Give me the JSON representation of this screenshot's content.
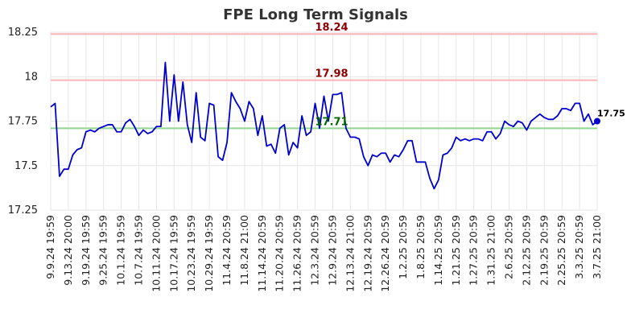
{
  "chart_data": {
    "type": "line",
    "title": "FPE Long Term Signals",
    "xlabel": "",
    "ylabel": "",
    "ylim": [
      17.25,
      18.25
    ],
    "yticks": [
      "17.25",
      "17.5",
      "17.75",
      "18",
      "18.25"
    ],
    "xtick_labels": [
      "9.9.24 19:59",
      "9.13.24 20:00",
      "9.19.24 19:59",
      "9.25.24 19:59",
      "10.1.24 19:59",
      "10.7.24 19:59",
      "10.11.24 20:00",
      "10.17.24 19:59",
      "10.23.24 19:59",
      "10.29.24 19:59",
      "11.4.24 20:59",
      "11.8.24 21:00",
      "11.14.24 20:59",
      "11.20.24 20:59",
      "11.26.24 20:59",
      "12.3.24 20:59",
      "12.9.24 20:59",
      "12.13.24 21:00",
      "12.19.24 20:59",
      "12.26.24 20:59",
      "1.2.25 20:59",
      "1.8.25 20:59",
      "1.14.25 20:59",
      "1.21.25 20:59",
      "1.27.25 20:59",
      "1.31.25 21:00",
      "2.6.25 20:59",
      "2.12.25 20:59",
      "2.19.25 20:59",
      "2.25.25 20:59",
      "3.3.25 20:59",
      "3.7.25 21:00"
    ],
    "grid": true,
    "line_color": "#0000cc",
    "series": [
      {
        "values": [
          17.83,
          17.85,
          17.44,
          17.48,
          17.48,
          17.56,
          17.59,
          17.6,
          17.69,
          17.7,
          17.69,
          17.71,
          17.72,
          17.73,
          17.73,
          17.69,
          17.69,
          17.74,
          17.76,
          17.72,
          17.67,
          17.7,
          17.68,
          17.69,
          17.72,
          17.72,
          18.08,
          17.75,
          18.01,
          17.75,
          17.97,
          17.73,
          17.63,
          17.91,
          17.66,
          17.64,
          17.85,
          17.84,
          17.55,
          17.53,
          17.63,
          17.91,
          17.86,
          17.82,
          17.75,
          17.86,
          17.82,
          17.67,
          17.78,
          17.61,
          17.62,
          17.57,
          17.71,
          17.73,
          17.56,
          17.63,
          17.6,
          17.78,
          17.67,
          17.69,
          17.85,
          17.71,
          17.89,
          17.75,
          17.9,
          17.9,
          17.91,
          17.71,
          17.66,
          17.66,
          17.65,
          17.55,
          17.5,
          17.56,
          17.55,
          17.57,
          17.57,
          17.52,
          17.56,
          17.55,
          17.59,
          17.64,
          17.64,
          17.52,
          17.52,
          17.52,
          17.43,
          17.37,
          17.42,
          17.56,
          17.57,
          17.6,
          17.66,
          17.64,
          17.65,
          17.64,
          17.65,
          17.65,
          17.64,
          17.69,
          17.69,
          17.65,
          17.68,
          17.75,
          17.73,
          17.72,
          17.75,
          17.74,
          17.7,
          17.75,
          17.77,
          17.79,
          17.77,
          17.76,
          17.76,
          17.78,
          17.82,
          17.82,
          17.81,
          17.85,
          17.85,
          17.75,
          17.79,
          17.73,
          17.75
        ]
      }
    ],
    "reference_lines": [
      {
        "value": 18.24,
        "label": "18.24",
        "color": "#ffb3b3"
      },
      {
        "value": 17.98,
        "label": "17.98",
        "color": "#ffb3b3"
      },
      {
        "value": 17.71,
        "label": "17.71",
        "color": "#90d890"
      }
    ],
    "last_value_label": "17.75"
  }
}
